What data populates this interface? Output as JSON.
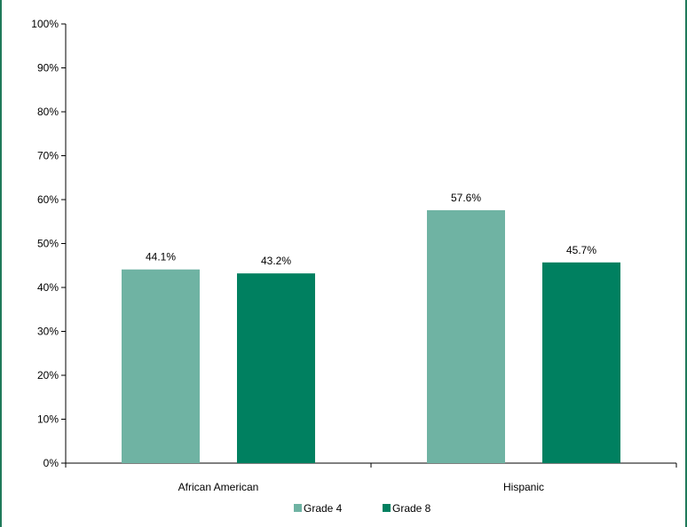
{
  "chart_data": {
    "type": "bar",
    "categories": [
      "African American",
      "Hispanic"
    ],
    "series": [
      {
        "name": "Grade 4",
        "values": [
          44.1,
          57.6
        ],
        "labels": [
          "44.1%",
          "57.6%"
        ],
        "color": "#6fb3a3"
      },
      {
        "name": "Grade 8",
        "values": [
          43.2,
          45.7
        ],
        "labels": [
          "43.2%",
          "45.7%"
        ],
        "color": "#008060"
      }
    ],
    "ylim": [
      0,
      100
    ],
    "yticks": [
      0,
      10,
      20,
      30,
      40,
      50,
      60,
      70,
      80,
      90,
      100
    ],
    "ytick_labels": [
      "0%",
      "10%",
      "20%",
      "30%",
      "40%",
      "50%",
      "60%",
      "70%",
      "80%",
      "90%",
      "100%"
    ],
    "grid": false,
    "legend_position": "bottom"
  }
}
